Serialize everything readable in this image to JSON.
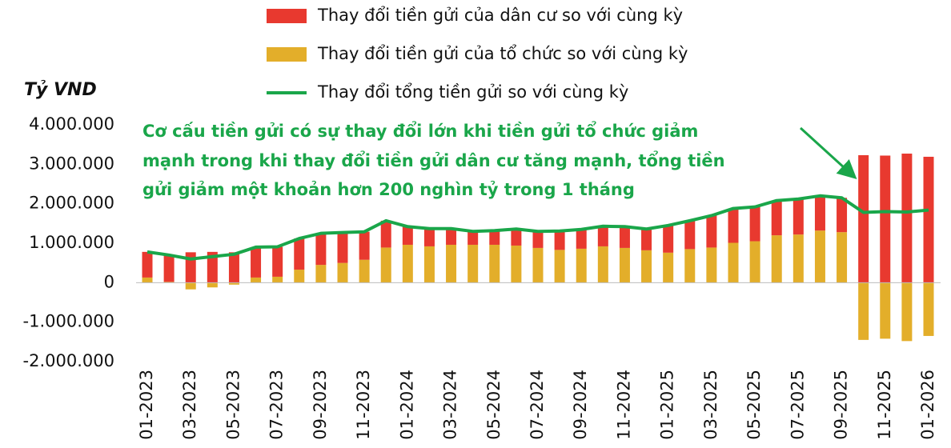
{
  "chart_data": {
    "type": "stacked_bar_line",
    "y_label": "Tỷ VND",
    "annotation": [
      "Cơ cấu tiền gửi có sự thay đổi lớn khi tiền gửi tổ chức giảm",
      "mạnh trong khi thay đổi tiền gửi dân cư tăng mạnh, tổng tiền",
      "gửi giảm một khoản hơn 200 nghìn tỷ trong 1 tháng"
    ],
    "categories": [
      "01-2023",
      null,
      "03-2023",
      null,
      "05-2023",
      null,
      "07-2023",
      null,
      "09-2023",
      null,
      "11-2023",
      null,
      "01-2024",
      null,
      "03-2024",
      null,
      "05-2024",
      null,
      "07-2024",
      null,
      "09-2024",
      null,
      "11-2024",
      null,
      "01-2025",
      null,
      "03-2025",
      null,
      "05-2025",
      null,
      "07-2025",
      null,
      "09-2025",
      null,
      "11-2025",
      null,
      "01-2026"
    ],
    "series": [
      {
        "name": "Thay đổi tiền gửi của dân cư so với cùng kỳ",
        "type": "bar",
        "color": "#e8392f",
        "values": [
          650000,
          680000,
          770000,
          780000,
          770000,
          770000,
          760000,
          790000,
          800000,
          770000,
          710000,
          680000,
          460000,
          450000,
          410000,
          340000,
          360000,
          420000,
          420000,
          480000,
          490000,
          510000,
          540000,
          540000,
          690000,
          720000,
          810000,
          870000,
          870000,
          880000,
          900000,
          880000,
          870000,
          3230000,
          3220000,
          3270000,
          3190000
        ]
      },
      {
        "name": "Thay đổi tiền gửi của tổ chức so với cùng kỳ",
        "type": "bar",
        "color": "#e3ae2a",
        "values": [
          130000,
          20000,
          -170000,
          -120000,
          -50000,
          130000,
          150000,
          330000,
          450000,
          500000,
          580000,
          890000,
          960000,
          920000,
          960000,
          960000,
          960000,
          940000,
          880000,
          830000,
          860000,
          920000,
          880000,
          820000,
          760000,
          850000,
          890000,
          1010000,
          1050000,
          1200000,
          1220000,
          1320000,
          1280000,
          -1450000,
          -1420000,
          -1480000,
          -1350000
        ]
      },
      {
        "name": "Thay đổi tổng tiền gửi so với cùng kỳ",
        "type": "line",
        "color": "#1aa64a",
        "values": [
          780000,
          700000,
          600000,
          660000,
          720000,
          900000,
          910000,
          1120000,
          1250000,
          1270000,
          1290000,
          1570000,
          1420000,
          1370000,
          1370000,
          1300000,
          1320000,
          1360000,
          1300000,
          1310000,
          1350000,
          1430000,
          1420000,
          1360000,
          1450000,
          1570000,
          1700000,
          1880000,
          1920000,
          2080000,
          2120000,
          2200000,
          2150000,
          1780000,
          1800000,
          1790000,
          1840000
        ]
      }
    ],
    "ylim": [
      -2000000,
      4000000
    ],
    "yticks": [
      {
        "value": -2000000,
        "label": "-2.000.000"
      },
      {
        "value": -1000000,
        "label": "-1.000.000"
      },
      0,
      {
        "value": 1000000,
        "label": "1.000.000"
      },
      {
        "value": 2000000,
        "label": "2.000.000"
      },
      {
        "value": 3000000,
        "label": "3.000.000"
      },
      {
        "value": 4000000,
        "label": "4.000.000"
      }
    ],
    "grid": false
  }
}
